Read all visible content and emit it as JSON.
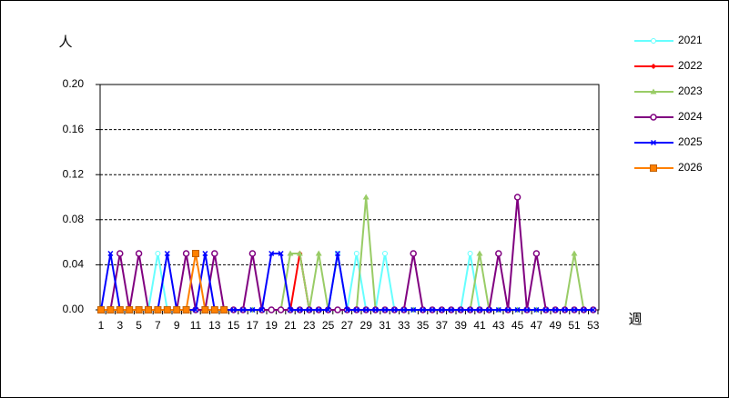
{
  "chart_data": {
    "type": "line",
    "y_label": "人",
    "x_label": "週",
    "categories": [
      1,
      null,
      3,
      null,
      5,
      null,
      7,
      null,
      9,
      null,
      11,
      null,
      13,
      null,
      15,
      null,
      17,
      null,
      19,
      null,
      21,
      null,
      23,
      null,
      25,
      null,
      27,
      null,
      29,
      null,
      31,
      null,
      33,
      null,
      35,
      null,
      37,
      null,
      39,
      null,
      41,
      null,
      43,
      null,
      45,
      null,
      47,
      null,
      49,
      null,
      51,
      null,
      53
    ],
    "ylim": [
      0,
      0.2
    ],
    "yticks": [
      {
        "value": 0,
        "label": "0.00"
      },
      0.04,
      0.08,
      0.12,
      0.16,
      {
        "value": 0.2,
        "label": "0.20"
      }
    ],
    "grid": true,
    "series": [
      {
        "name": "2021",
        "color": "#66ffff",
        "marker": "circle",
        "values": [
          0,
          0,
          0,
          0,
          0,
          0,
          0.05,
          0,
          0,
          0,
          0,
          0,
          0,
          0,
          0,
          0,
          0,
          0,
          0,
          0,
          0,
          0,
          0,
          0,
          0,
          0.05,
          0,
          0.05,
          0,
          0,
          0.05,
          0,
          0,
          0,
          0,
          0,
          0,
          0,
          0,
          0.05,
          0,
          0,
          0,
          0,
          0,
          0,
          0,
          0,
          0,
          0,
          0,
          0,
          0
        ]
      },
      {
        "name": "2022",
        "color": "#ff0000",
        "marker": "diamond",
        "values": [
          0,
          0,
          0,
          0,
          0,
          0,
          0,
          0,
          0,
          0,
          0,
          0,
          0,
          0,
          0,
          0,
          0,
          0,
          0,
          0,
          0,
          0.05,
          0,
          0,
          0,
          0,
          0,
          0,
          0,
          0,
          0,
          0,
          0,
          0,
          0,
          0,
          0,
          0,
          0,
          0,
          0,
          0,
          0,
          0,
          0,
          0,
          0,
          0,
          0,
          0,
          0,
          0,
          0
        ]
      },
      {
        "name": "2023",
        "color": "#99cc66",
        "marker": "triangle",
        "values": [
          0,
          0,
          0,
          0,
          0,
          0,
          0,
          0,
          0,
          0,
          0,
          0,
          0,
          0,
          0,
          0,
          0,
          0,
          0,
          0,
          0.05,
          0.05,
          0,
          0.05,
          0,
          0,
          0,
          0,
          0.1,
          0,
          0,
          0,
          0,
          0,
          0,
          0,
          0,
          0,
          0,
          0,
          0.05,
          0,
          0,
          0,
          0,
          0,
          0,
          0,
          0,
          0,
          0.05,
          0,
          0
        ]
      },
      {
        "name": "2024",
        "color": "#800080",
        "marker": "bigcircle",
        "values": [
          0,
          0,
          0.05,
          0,
          0.05,
          0,
          0,
          0,
          0,
          0.05,
          0,
          0,
          0.05,
          0,
          0,
          0,
          0.05,
          0,
          0,
          0,
          0,
          0,
          0,
          0,
          0,
          0,
          0,
          0,
          0,
          0,
          0,
          0,
          0,
          0.05,
          0,
          0,
          0,
          0,
          0,
          0,
          0,
          0,
          0.05,
          0,
          0.1,
          0,
          0.05,
          0,
          0,
          0,
          0,
          0,
          0
        ]
      },
      {
        "name": "2025",
        "color": "#0000ff",
        "marker": "x",
        "values": [
          0,
          0.05,
          0,
          0,
          0,
          0,
          0,
          0.05,
          0,
          0,
          0,
          0.05,
          0,
          0,
          0,
          0,
          0,
          0,
          0.05,
          0.05,
          0,
          0,
          0,
          0,
          0,
          0.05,
          0,
          0,
          0,
          0,
          0,
          0,
          0,
          0,
          0,
          0,
          0,
          0,
          0,
          0,
          0,
          0,
          0,
          0,
          0,
          0,
          0,
          0,
          0,
          0,
          0,
          0,
          0
        ]
      },
      {
        "name": "2026",
        "color": "#ff8000",
        "marker": "square",
        "values": [
          0,
          0,
          0,
          0,
          0,
          0,
          0,
          0,
          0,
          0,
          0.05,
          0,
          0,
          0,
          null,
          null,
          null,
          null,
          null,
          null,
          null,
          null,
          null,
          null,
          null,
          null,
          null,
          null,
          null,
          null,
          null,
          null,
          null,
          null,
          null,
          null,
          null,
          null,
          null,
          null,
          null,
          null,
          null,
          null,
          null,
          null,
          null,
          null,
          null,
          null,
          null,
          null,
          null
        ]
      }
    ]
  }
}
